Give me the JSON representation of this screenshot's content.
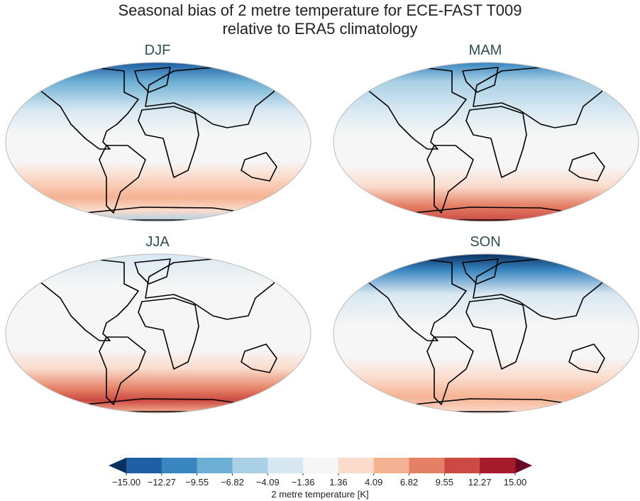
{
  "title_line1": "Seasonal bias of 2 metre temperature for ECE-FAST T009",
  "title_line2": "relative to ERA5 climatology",
  "chart_data": {
    "type": "map",
    "projection": "global ellipse (Robinson-like)",
    "panels": [
      {
        "title": "DJF",
        "pattern": "strong cold bias over Arctic/northern high latitudes, warm bias over Southern Ocean"
      },
      {
        "title": "MAM",
        "pattern": "cold bias in northern high latitudes, strong warm bias near Antarctic coast"
      },
      {
        "title": "JJA",
        "pattern": "weak northern bias, strong warm bias over Southern Ocean"
      },
      {
        "title": "SON",
        "pattern": "strong cold bias over Arctic, warm bias over Southern Ocean"
      }
    ],
    "colorbar": {
      "label": "2 metre temperature [K]",
      "levels": [
        "−15.00",
        "−12.27",
        "−9.55",
        "−6.82",
        "−4.09",
        "−1.36",
        "1.36",
        "4.09",
        "6.82",
        "9.55",
        "12.27",
        "15.00"
      ],
      "colors": [
        "#1f5fa3",
        "#3985c0",
        "#6cafd4",
        "#a9d0e5",
        "#d8e8f2",
        "#f6f6f6",
        "#fbdccc",
        "#f5b293",
        "#e48066",
        "#cb4a43",
        "#a61b2b"
      ],
      "under_color": "#0b3161",
      "over_color": "#6a0624",
      "extend": "both"
    }
  }
}
